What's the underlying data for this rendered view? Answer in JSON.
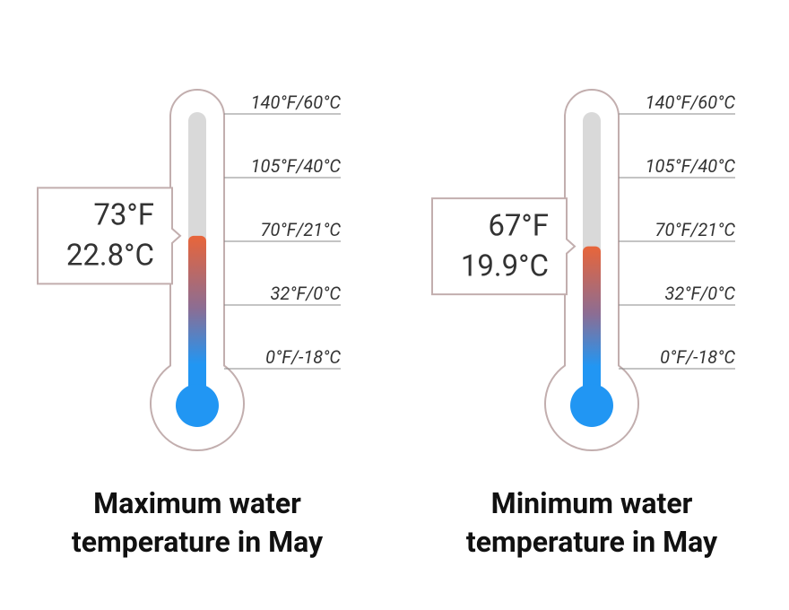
{
  "chart_data": [
    {
      "type": "thermometer",
      "title": "Maximum water temperature in May",
      "values": [
        73
      ],
      "value_labels": [
        "73°F"
      ],
      "values_celsius": [
        22.8
      ],
      "value_labels_celsius": [
        "22.8°C"
      ],
      "ylim": [
        0,
        140
      ],
      "yticks": [
        {
          "value": 0,
          "label": "0°F/-18°C"
        },
        {
          "value": 32,
          "label": "32°F/0°C"
        },
        {
          "value": 70,
          "label": "70°F/21°C"
        },
        {
          "value": 105,
          "label": "105°F/40°C"
        },
        {
          "value": 140,
          "label": "140°F/60°C"
        }
      ],
      "color": "#2196f3"
    },
    {
      "type": "thermometer",
      "title": "Minimum water temperature in May",
      "values": [
        67
      ],
      "value_labels": [
        "67°F"
      ],
      "values_celsius": [
        19.9
      ],
      "value_labels_celsius": [
        "19.9°C"
      ],
      "ylim": [
        0,
        140
      ],
      "yticks": [
        {
          "value": 0,
          "label": "0°F/-18°C"
        },
        {
          "value": 32,
          "label": "32°F/0°C"
        },
        {
          "value": 70,
          "label": "70°F/21°C"
        },
        {
          "value": 105,
          "label": "105°F/40°C"
        },
        {
          "value": 140,
          "label": "140°F/60°C"
        }
      ],
      "color": "#2196f3"
    }
  ]
}
